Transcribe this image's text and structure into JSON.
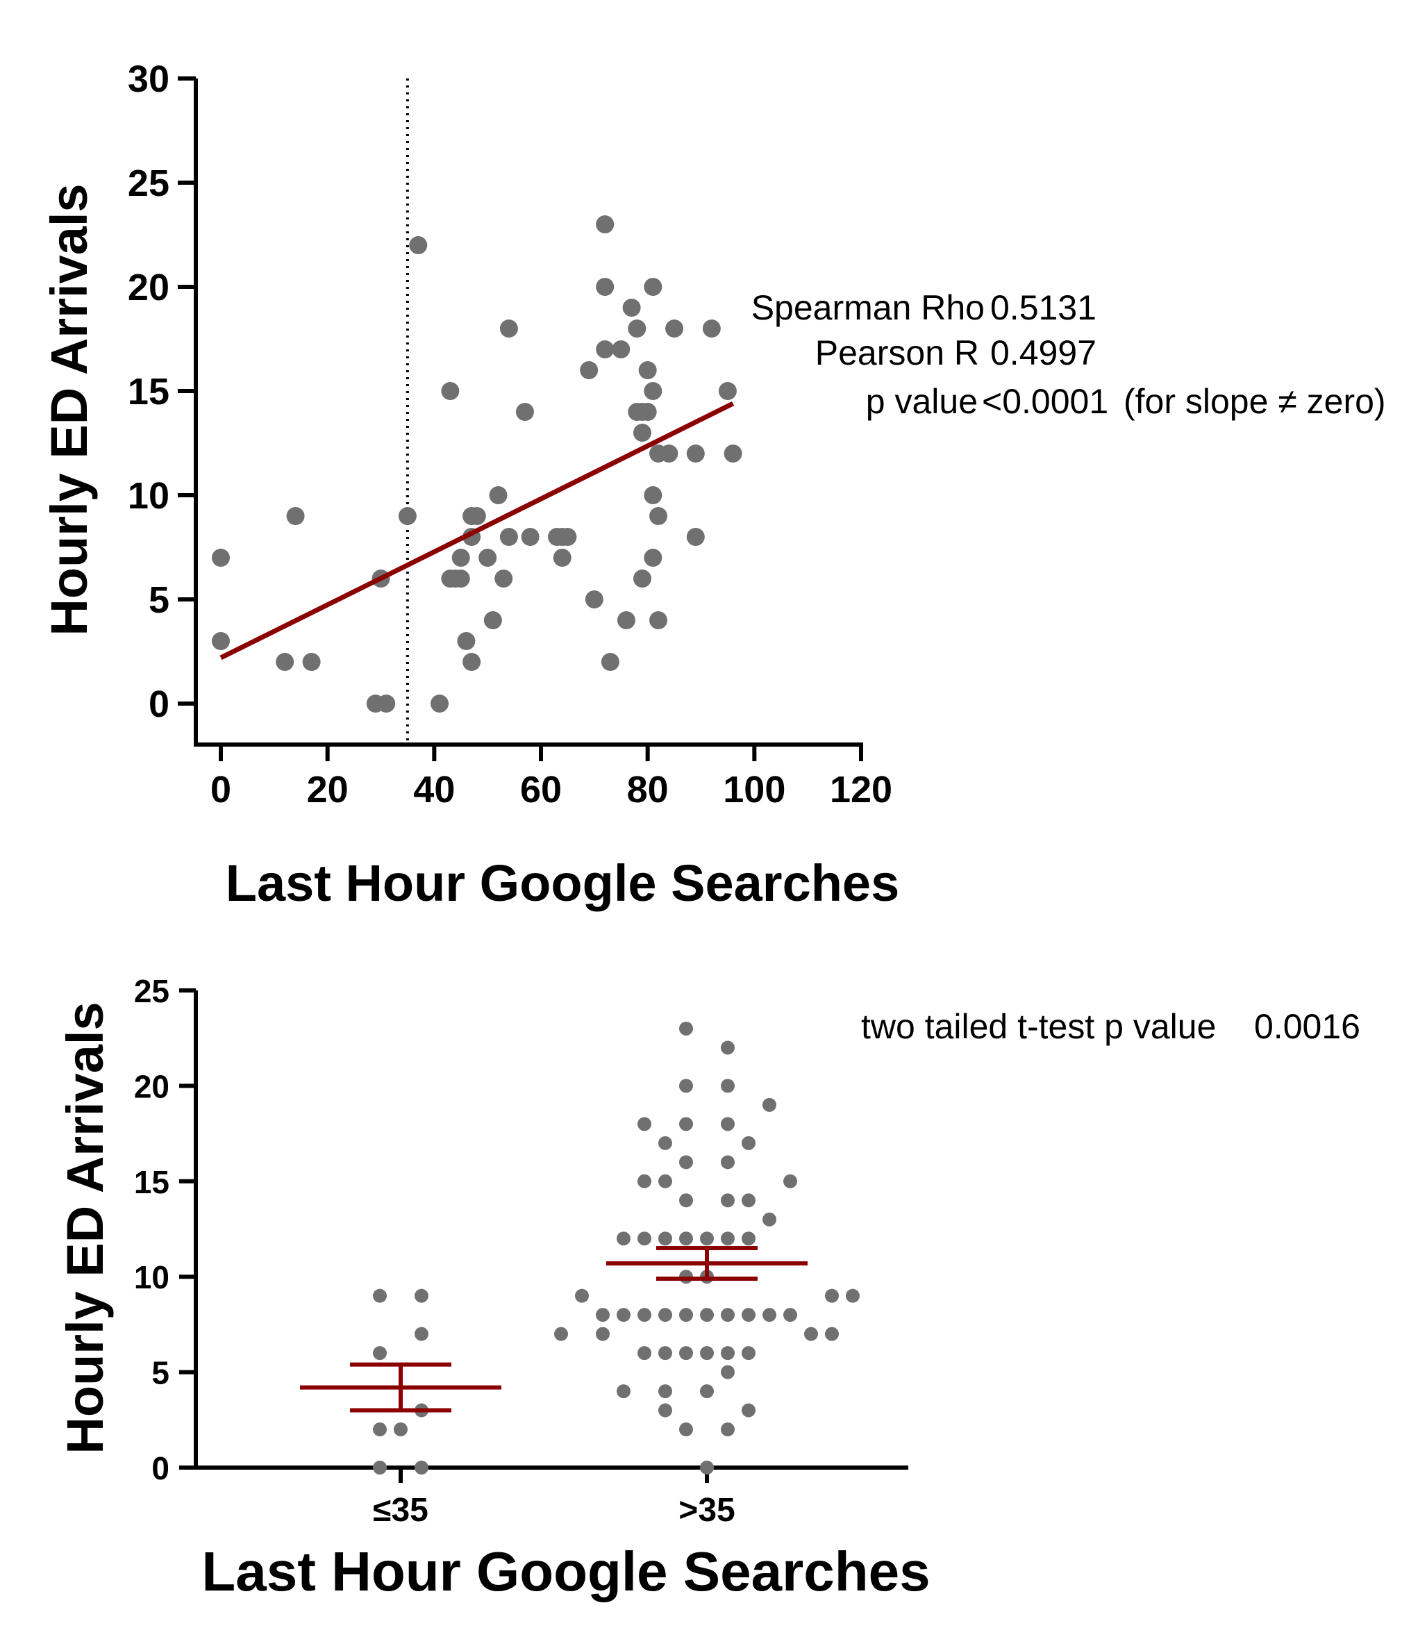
{
  "chart_data": [
    {
      "type": "scatter",
      "xlabel": "Last Hour Google Searches",
      "ylabel": "Hourly ED Arrivals",
      "xlim": [
        0,
        120
      ],
      "ylim": [
        0,
        30
      ],
      "xticks": [
        "0",
        "20",
        "40",
        "60",
        "80",
        "100",
        "120"
      ],
      "yticks": [
        "0",
        "5",
        "10",
        "15",
        "20",
        "25",
        "30"
      ],
      "grid": false,
      "threshold_x": 35,
      "points": [
        [
          0,
          7
        ],
        [
          0,
          3
        ],
        [
          12,
          2
        ],
        [
          14,
          9
        ],
        [
          17,
          2
        ],
        [
          29,
          0
        ],
        [
          30,
          6
        ],
        [
          31,
          0
        ],
        [
          35,
          9
        ],
        [
          37,
          22
        ],
        [
          41,
          0
        ],
        [
          43,
          15
        ],
        [
          43,
          6
        ],
        [
          44,
          6
        ],
        [
          45,
          7
        ],
        [
          45,
          6
        ],
        [
          46,
          3
        ],
        [
          47,
          9
        ],
        [
          47,
          8
        ],
        [
          47,
          2
        ],
        [
          48,
          9
        ],
        [
          50,
          7
        ],
        [
          51,
          4
        ],
        [
          52,
          10
        ],
        [
          53,
          6
        ],
        [
          54,
          18
        ],
        [
          54,
          8
        ],
        [
          57,
          14
        ],
        [
          58,
          8
        ],
        [
          63,
          8
        ],
        [
          64,
          8
        ],
        [
          64,
          7
        ],
        [
          65,
          8
        ],
        [
          69,
          16
        ],
        [
          70,
          5
        ],
        [
          72,
          23
        ],
        [
          72,
          20
        ],
        [
          72,
          17
        ],
        [
          73,
          2
        ],
        [
          75,
          17
        ],
        [
          76,
          4
        ],
        [
          77,
          19
        ],
        [
          78,
          18
        ],
        [
          78,
          14
        ],
        [
          79,
          14
        ],
        [
          79,
          13
        ],
        [
          79,
          6
        ],
        [
          80,
          16
        ],
        [
          80,
          14
        ],
        [
          81,
          20
        ],
        [
          81,
          15
        ],
        [
          81,
          10
        ],
        [
          81,
          7
        ],
        [
          82,
          12
        ],
        [
          82,
          9
        ],
        [
          82,
          4
        ],
        [
          84,
          12
        ],
        [
          85,
          18
        ],
        [
          89,
          12
        ],
        [
          89,
          8
        ],
        [
          92,
          18
        ],
        [
          95,
          15
        ],
        [
          96,
          12
        ]
      ],
      "regression": {
        "x0": 0,
        "y0": 2.2,
        "x1": 96,
        "y1": 14.4
      },
      "annotations": [
        {
          "label": "Spearman Rho",
          "value": "0.5131"
        },
        {
          "label": "Pearson R",
          "value": "0.4997"
        },
        {
          "label": "p value",
          "value": "<0.0001",
          "note": "(for slope ≠ zero)"
        }
      ]
    },
    {
      "type": "scatter",
      "subtype": "dot-plot",
      "xlabel": "Last Hour Google Searches",
      "ylabel": "Hourly ED Arrivals",
      "ylim": [
        0,
        25
      ],
      "yticks": [
        "0",
        "5",
        "10",
        "15",
        "20",
        "25"
      ],
      "categories": [
        "≤35",
        ">35"
      ],
      "grid": false,
      "groups": [
        {
          "category": "≤35",
          "mean": 4.2,
          "sem_low": 3.0,
          "sem_high": 5.4,
          "points": [
            [
              -1,
              9
            ],
            [
              1,
              9
            ],
            [
              1,
              7
            ],
            [
              -1,
              6
            ],
            [
              1,
              3
            ],
            [
              -1,
              2
            ],
            [
              0,
              2
            ],
            [
              -1,
              0
            ],
            [
              1,
              0
            ]
          ]
        },
        {
          "category": ">35",
          "mean": 10.7,
          "sem_low": 9.9,
          "sem_high": 11.5,
          "points": [
            [
              -1,
              23
            ],
            [
              1,
              22
            ],
            [
              -1,
              20
            ],
            [
              1,
              20
            ],
            [
              3,
              19
            ],
            [
              -3,
              18
            ],
            [
              -1,
              18
            ],
            [
              1,
              18
            ],
            [
              -2,
              17
            ],
            [
              2,
              17
            ],
            [
              -1,
              16
            ],
            [
              1,
              16
            ],
            [
              -3,
              15
            ],
            [
              -2,
              15
            ],
            [
              4,
              15
            ],
            [
              -1,
              14
            ],
            [
              1,
              14
            ],
            [
              2,
              14
            ],
            [
              3,
              13
            ],
            [
              -4,
              12
            ],
            [
              -3,
              12
            ],
            [
              -2,
              12
            ],
            [
              -1,
              12
            ],
            [
              0,
              12
            ],
            [
              1,
              12
            ],
            [
              2,
              12
            ],
            [
              -1,
              10
            ],
            [
              0,
              10
            ],
            [
              -6,
              9
            ],
            [
              6,
              9
            ],
            [
              7,
              9
            ],
            [
              -5,
              8
            ],
            [
              -4,
              8
            ],
            [
              -3,
              8
            ],
            [
              -2,
              8
            ],
            [
              -1,
              8
            ],
            [
              0,
              8
            ],
            [
              1,
              8
            ],
            [
              2,
              8
            ],
            [
              3,
              8
            ],
            [
              4,
              8
            ],
            [
              -7,
              7
            ],
            [
              -5,
              7
            ],
            [
              5,
              7
            ],
            [
              6,
              7
            ],
            [
              -3,
              6
            ],
            [
              -2,
              6
            ],
            [
              -1,
              6
            ],
            [
              0,
              6
            ],
            [
              1,
              6
            ],
            [
              2,
              6
            ],
            [
              1,
              5
            ],
            [
              -4,
              4
            ],
            [
              -2,
              4
            ],
            [
              0,
              4
            ],
            [
              -2,
              3
            ],
            [
              2,
              3
            ],
            [
              -1,
              2
            ],
            [
              1,
              2
            ],
            [
              0,
              0
            ]
          ]
        }
      ],
      "annotations": [
        {
          "label": "two tailed t-test p value",
          "value": "0.0016"
        }
      ]
    }
  ],
  "colors": {
    "points": "#707070",
    "regression": "#8b0000",
    "mean_sem": "#8b0000",
    "axes": "#000000"
  }
}
